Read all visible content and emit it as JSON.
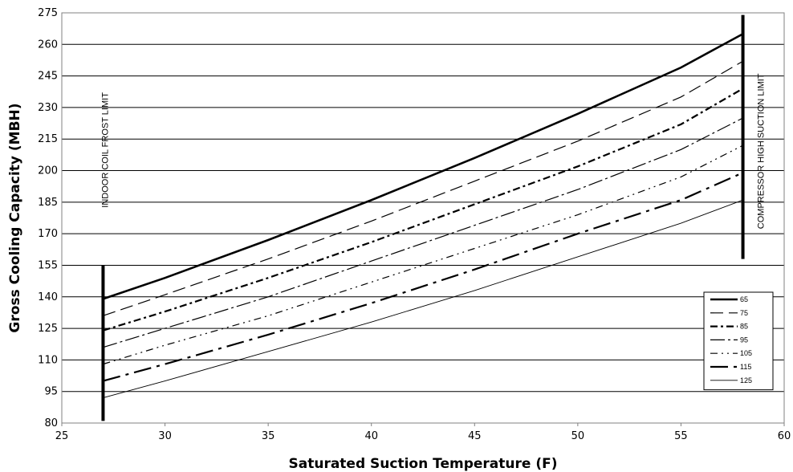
{
  "chart_data": {
    "type": "line",
    "title": "",
    "xlabel": "Saturated Suction Temperature (F)",
    "ylabel": "Gross Cooling Capacity (MBH)",
    "xlim": [
      25,
      60
    ],
    "ylim": [
      80,
      275
    ],
    "xticks": [
      25,
      30,
      35,
      40,
      45,
      50,
      55,
      60
    ],
    "yticks": [
      80,
      95,
      110,
      125,
      140,
      155,
      170,
      185,
      200,
      215,
      230,
      245,
      260,
      275
    ],
    "grid": "horizontal",
    "legend_position": "bottom-right",
    "series": [
      {
        "name": "65",
        "dash": "solid-bold",
        "x": [
          27,
          30,
          35,
          40,
          45,
          50,
          55,
          58
        ],
        "y": [
          139,
          149,
          167,
          186,
          206,
          227,
          249,
          265
        ]
      },
      {
        "name": "75",
        "dash": "long-dash",
        "x": [
          27,
          30,
          35,
          40,
          45,
          50,
          55,
          58
        ],
        "y": [
          131,
          141,
          158,
          176,
          195,
          214,
          235,
          252
        ]
      },
      {
        "name": "85",
        "dash": "dash-dot-bold",
        "x": [
          27,
          30,
          35,
          40,
          45,
          50,
          55,
          58
        ],
        "y": [
          124,
          133,
          149,
          166,
          184,
          202,
          222,
          239
        ]
      },
      {
        "name": "95",
        "dash": "long-dash-dot",
        "x": [
          27,
          30,
          35,
          40,
          45,
          50,
          55,
          58
        ],
        "y": [
          116,
          125,
          140,
          157,
          174,
          191,
          210,
          225
        ]
      },
      {
        "name": "105",
        "dash": "dash-dot-dot",
        "x": [
          27,
          30,
          35,
          40,
          45,
          50,
          55,
          58
        ],
        "y": [
          108,
          117,
          131,
          147,
          163,
          179,
          197,
          212
        ]
      },
      {
        "name": "115",
        "dash": "long-dash-bold",
        "x": [
          27,
          30,
          35,
          40,
          45,
          50,
          55,
          58
        ],
        "y": [
          100,
          108,
          122,
          137,
          153,
          170,
          186,
          199
        ]
      },
      {
        "name": "125",
        "dash": "solid-thin",
        "x": [
          27,
          30,
          35,
          40,
          45,
          50,
          55,
          58
        ],
        "y": [
          92,
          100,
          114,
          128,
          143,
          159,
          175,
          186
        ]
      }
    ],
    "limit_lines": [
      {
        "label": "INDOOR COIL FROST LIMIT",
        "x": 27,
        "y_range": [
          81,
          155
        ]
      },
      {
        "label": "COMPRESSOR HIGH SUCTION LIMIT",
        "x": 58,
        "y_range": [
          158,
          274
        ]
      }
    ]
  }
}
